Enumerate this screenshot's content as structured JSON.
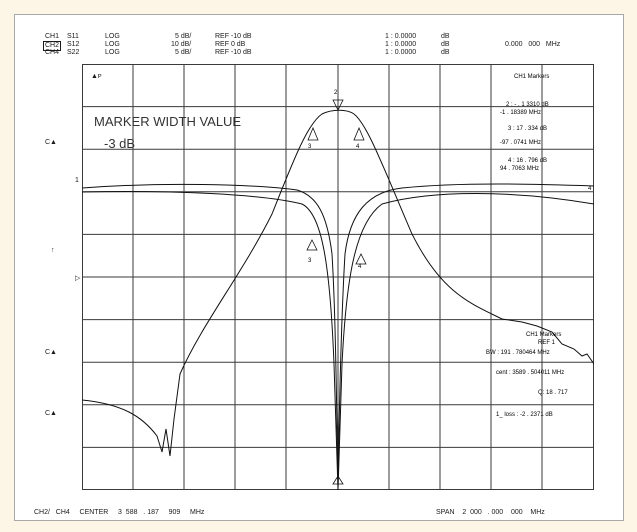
{
  "header": {
    "rows": [
      {
        "ch": "CH1",
        "param": "S11",
        "fmt": "LOG",
        "scale": "5 dB/",
        "ref": "REF -10 dB",
        "marker": "1 : 0.0000",
        "unit": "dB"
      },
      {
        "ch": "CH2",
        "param": "S12",
        "fmt": "LOG",
        "scale": "10 dB/",
        "ref": "REF 0 dB",
        "marker": "1 : 0.0000",
        "unit": "dB"
      },
      {
        "ch": "CH4",
        "param": "S22",
        "fmt": "LOG",
        "scale": "5 dB/",
        "ref": "REF -10 dB",
        "marker": "1 : 0.0000",
        "unit": "dB"
      }
    ],
    "freq_readout": "0.000   000   MHz"
  },
  "left_labels": {
    "top_marker": "▲ᴘ",
    "c1": "C▲",
    "ref1": "1",
    "arrow": "↑",
    "ref_tri": "▷",
    "c2": "C▲",
    "c3": "C▲"
  },
  "overlay": {
    "title": "MARKER WIDTH VALUE",
    "value": "-3 dB"
  },
  "markers_panel": {
    "title": "CH1   Markers",
    "m2a": "2 : - . 1 3310    dB",
    "m2b": "-1  . 18389     MHz",
    "m3a": "3 : 17 . 334    dB",
    "m3b": "-97  . 0741    MHz",
    "m4a": "4 : 16 . 796    dB",
    "m4b": "94  . 7063    MHz"
  },
  "width_panel": {
    "title": "CH1  Markers",
    "ref": "REF 1",
    "bw": "BW :  191   . 780464   MHz",
    "cent": "cent     :  3589   . 504011     MHz",
    "q": "Q:  18  . 717",
    "loss": "1_ loss       : -2  . 2371    dB"
  },
  "marker_labels": {
    "top2": "2",
    "top3": "3",
    "top4": "4",
    "mid3": "3",
    "mid4": "4",
    "bot2": "2",
    "right4": "4"
  },
  "footer": {
    "left": "CH2/   CH4     CENTER     3  588   . 187     909     MHz",
    "right": "SPAN    2  000   . 000    000    MHz",
    "center_marker": "2"
  },
  "chart_data": {
    "type": "line",
    "series": [],
    "xlabel": "",
    "ylabel": "",
    "x_center_mhz": "3 588 . 187 909",
    "x_span_mhz": "2 000 . 000 000",
    "grid": true
  },
  "colors": {
    "trace": "#111111",
    "grid": "#3a3a3a",
    "background": "#ffffff",
    "page": "#fdf6e6"
  }
}
